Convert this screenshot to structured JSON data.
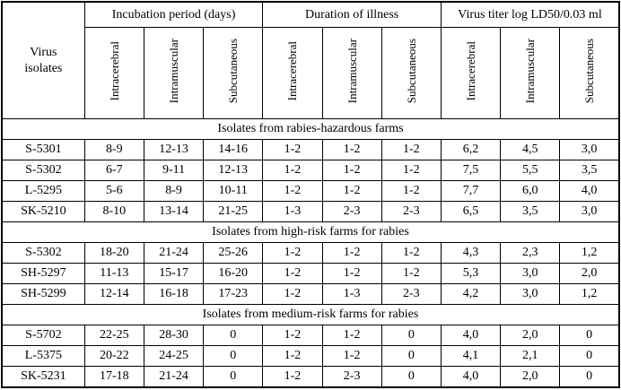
{
  "chart_data": {
    "type": "table",
    "corner_header": "Virus isolates",
    "column_groups": [
      "Incubation period (days)",
      "Duration of illness",
      "Virus titer log LD50/0.03 ml"
    ],
    "sub_columns": [
      "Intracerebral",
      "Intramuscular",
      "Subcutaneous"
    ],
    "sections": [
      {
        "title": "Isolates from rabies-hazardous farms",
        "rows": [
          {
            "isolate": "S-5301",
            "values": [
              "8-9",
              "12-13",
              "14-16",
              "1-2",
              "1-2",
              "1-2",
              "6,2",
              "4,5",
              "3,0"
            ]
          },
          {
            "isolate": "S-5302",
            "values": [
              "6-7",
              "9-11",
              "12-13",
              "1-2",
              "1-2",
              "1-2",
              "7,5",
              "5,5",
              "3,5"
            ]
          },
          {
            "isolate": "L-5295",
            "values": [
              "5-6",
              "8-9",
              "10-11",
              "1-2",
              "1-2",
              "1-2",
              "7,7",
              "6,0",
              "4,0"
            ]
          },
          {
            "isolate": "SK-5210",
            "values": [
              "8-10",
              "13-14",
              "21-25",
              "1-3",
              "2-3",
              "2-3",
              "6,5",
              "3,5",
              "3,0"
            ]
          }
        ]
      },
      {
        "title": "Isolates from high-risk farms for rabies",
        "rows": [
          {
            "isolate": "S-5302",
            "values": [
              "18-20",
              "21-24",
              "25-26",
              "1-2",
              "1-2",
              "1-2",
              "4,3",
              "2,3",
              "1,2"
            ]
          },
          {
            "isolate": "SH-5297",
            "values": [
              "11-13",
              "15-17",
              "16-20",
              "1-2",
              "1-2",
              "1-2",
              "5,3",
              "3,0",
              "2,0"
            ]
          },
          {
            "isolate": "SH-5299",
            "values": [
              "12-14",
              "16-18",
              "17-23",
              "1-2",
              "1-3",
              "2-3",
              "4,2",
              "3,0",
              "1,2"
            ]
          }
        ]
      },
      {
        "title": "Isolates from medium-risk farms for rabies",
        "rows": [
          {
            "isolate": "S-5702",
            "values": [
              "22-25",
              "28-30",
              "0",
              "1-2",
              "1-2",
              "0",
              "4,0",
              "2,0",
              "0"
            ]
          },
          {
            "isolate": "L-5375",
            "values": [
              "20-22",
              "24-25",
              "0",
              "1-2",
              "1-2",
              "0",
              "4,1",
              "2,1",
              "0"
            ]
          },
          {
            "isolate": "SK-5231",
            "values": [
              "17-18",
              "21-24",
              "0",
              "1-2",
              "2-3",
              "0",
              "4,0",
              "2,0",
              "0"
            ]
          }
        ]
      }
    ]
  }
}
